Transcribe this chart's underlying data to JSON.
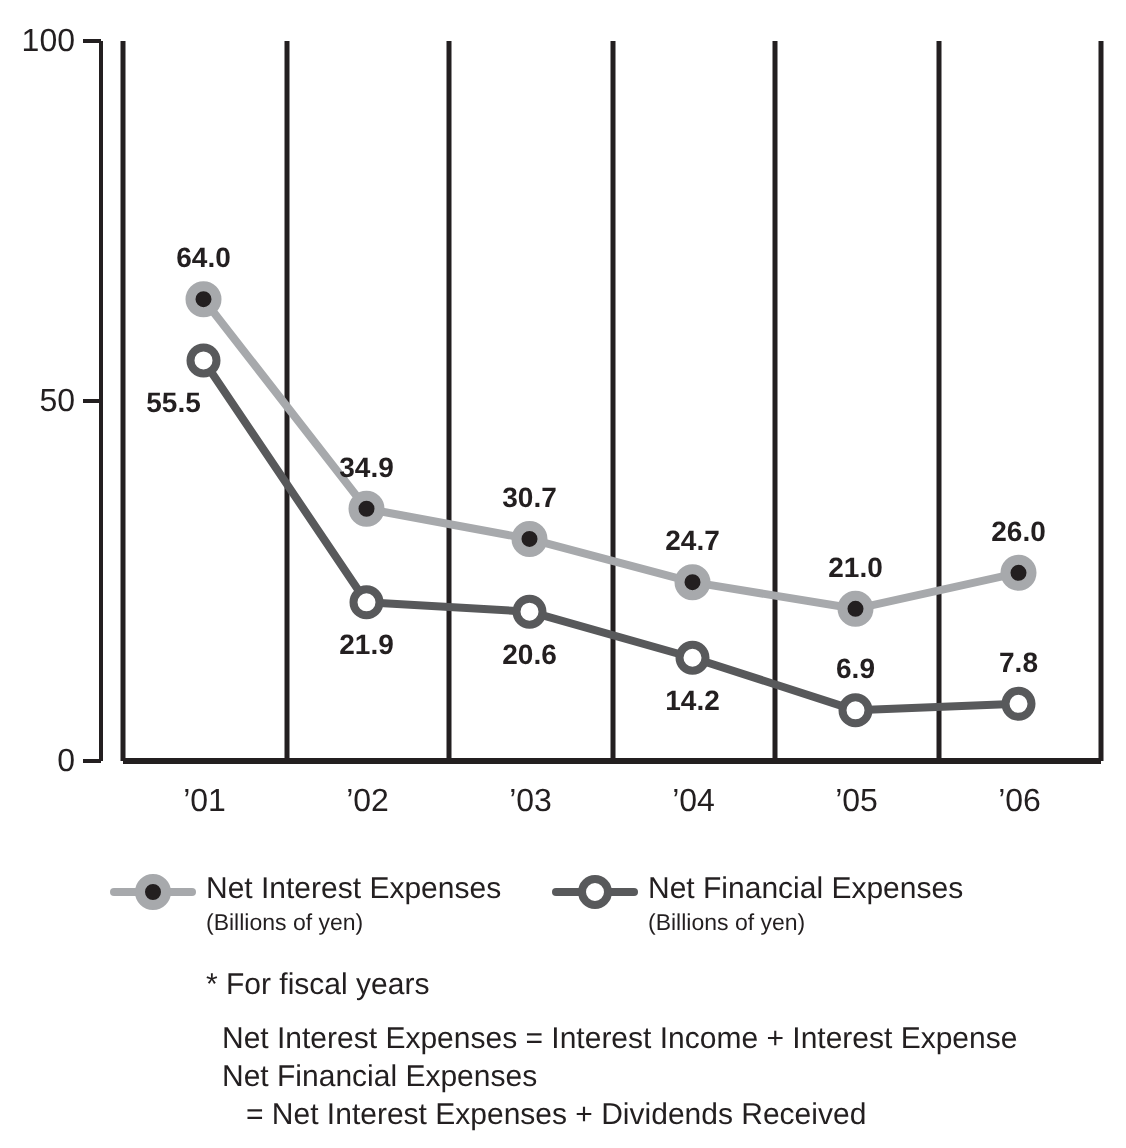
{
  "chart_data": {
    "type": "line",
    "categories": [
      "’01",
      "’02",
      "’03",
      "’04",
      "’05",
      "’06"
    ],
    "series": [
      {
        "name": "Net Interest Expenses\n(Billions of yen)",
        "color": "#a7a9ac",
        "values": [
          64.0,
          34.9,
          30.7,
          24.7,
          21.0,
          26.0
        ],
        "value_labels": [
          "64.0",
          "34.9",
          "30.7",
          "24.7",
          "21.0",
          "26.0"
        ]
      },
      {
        "name": "Net Financial Expenses\n(Billions of yen)",
        "color": "#58595b",
        "values": [
          55.5,
          21.9,
          20.6,
          14.2,
          6.9,
          7.8
        ],
        "value_labels": [
          "55.5",
          "21.9",
          "20.6",
          "14.2",
          "6.9",
          "7.8"
        ]
      }
    ],
    "ylim": [
      0,
      100
    ],
    "yticks": [
      0,
      50,
      100
    ],
    "grid": "x",
    "legend": "bottom",
    "marker": "circle",
    "line_style": "solid",
    "annotations": [
      "* For fiscal years",
      "Net Interest Expenses = Interest Income + Interest Expense",
      "Net Financial Expenses\n= Net Interest Expenses + Dividends Received"
    ]
  }
}
